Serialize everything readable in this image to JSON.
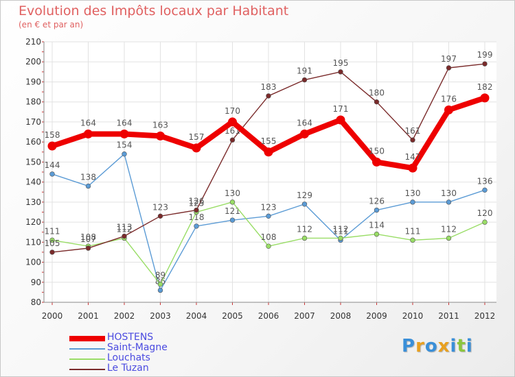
{
  "chart_data": {
    "type": "line",
    "title": "Evolution des Impôts locaux par Habitant",
    "subtitle": "(en € et par an)",
    "xlabel": "",
    "ylabel": "",
    "ylim": [
      80,
      210
    ],
    "yticks": [
      80,
      90,
      100,
      110,
      120,
      130,
      140,
      150,
      160,
      170,
      180,
      190,
      200,
      210
    ],
    "categories": [
      "2000",
      "2001",
      "2002",
      "2003",
      "2004",
      "2005",
      "2006",
      "2007",
      "2008",
      "2009",
      "2010",
      "2011",
      "2012"
    ],
    "grid": true,
    "series": [
      {
        "name": "HOSTENS",
        "color": "#ee0000",
        "emphasis": true,
        "values": [
          158,
          164,
          164,
          163,
          157,
          170,
          155,
          164,
          171,
          150,
          147,
          176,
          182
        ]
      },
      {
        "name": "Saint-Magne",
        "color": "#5b9bd5",
        "emphasis": false,
        "values": [
          144,
          138,
          154,
          86,
          118,
          121,
          123,
          129,
          111,
          126,
          130,
          130,
          136
        ]
      },
      {
        "name": "Louchats",
        "color": "#99dd66",
        "emphasis": false,
        "values": [
          111,
          108,
          112,
          89,
          125,
          130,
          108,
          112,
          112,
          114,
          111,
          112,
          120
        ]
      },
      {
        "name": "Le Tuzan",
        "color": "#7a2a2a",
        "emphasis": false,
        "values": [
          105,
          107,
          113,
          123,
          126,
          161,
          183,
          191,
          195,
          180,
          161,
          197,
          199
        ]
      }
    ]
  },
  "logo": {
    "text": "Proxiti",
    "letters": [
      "P",
      "r",
      "o",
      "x",
      "i",
      "t",
      "i"
    ],
    "colors": [
      "#3a8fd8",
      "#e8a020",
      "#3a8fd8",
      "#e8a020",
      "#3a8fd8",
      "#8cc63f",
      "#3a8fd8"
    ]
  }
}
